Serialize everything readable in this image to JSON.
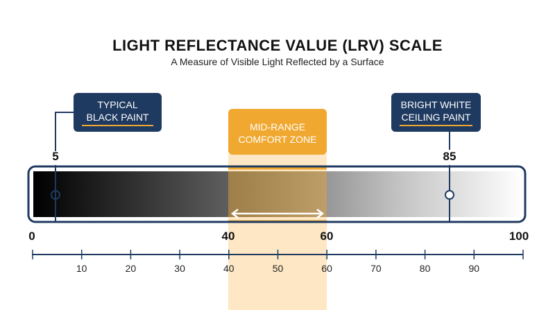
{
  "title": "LIGHT REFLECTANCE VALUE (LRV) SCALE",
  "subtitle": "A Measure of Visible Light Reflected by a Surface",
  "callouts": {
    "black": {
      "line1": "TYPICAL",
      "line2": "BLACK PAINT",
      "value": "5"
    },
    "white": {
      "line1": "BRIGHT WHITE",
      "line2": "CEILING PAINT",
      "value": "85"
    }
  },
  "zone": {
    "line1": "MID-RANGE",
    "line2": "COMFORT ZONE",
    "start": "40",
    "end": "60"
  },
  "scale": {
    "min": 0,
    "max": 100,
    "end_labels": [
      "0",
      "100"
    ],
    "ticks": [
      "10",
      "20",
      "30",
      "40",
      "50",
      "60",
      "70",
      "80",
      "90"
    ],
    "markers": [
      5,
      85
    ],
    "zone_range": [
      40,
      60
    ]
  },
  "colors": {
    "navy": "#1f3a60",
    "accent": "#f0a830",
    "zone_light": "#fde7c4",
    "text": "#111111"
  }
}
